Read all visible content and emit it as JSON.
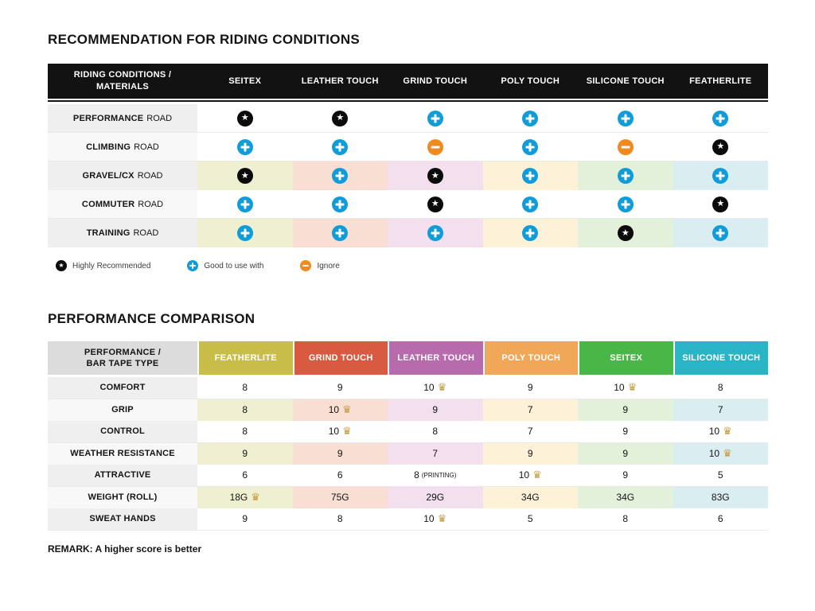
{
  "colors": {
    "featherlite": "#c9bd4a",
    "grind": "#d85b41",
    "leather": "#b76bad",
    "poly": "#f1a758",
    "seitex": "#4ab648",
    "silicone": "#2ab5c6",
    "featherlite_pale": "#eff0d2",
    "grind_pale": "#f9ded4",
    "leather_pale": "#f3dfee",
    "poly_pale": "#fdf1d7",
    "seitex_pale": "#e4f1da",
    "silicone_pale": "#daeef2",
    "star": "#0b0b0b",
    "plus": "#0f9cd8",
    "minus": "#f08a1e",
    "crown": "#c49a3c"
  },
  "chart_data": [
    {
      "type": "table",
      "title": "RECOMMENDATION FOR RIDING CONDITIONS",
      "corner": {
        "line1": "RIDING CONDITIONS /",
        "line2": "MATERIALS"
      },
      "columns": [
        "SEITEX",
        "LEATHER TOUCH",
        "GRIND TOUCH",
        "POLY TOUCH",
        "SILICONE TOUCH",
        "FEATHERLITE"
      ],
      "rows": [
        {
          "name": "PERFORMANCE",
          "suffix": "ROAD",
          "marks": [
            "star",
            "star",
            "plus",
            "plus",
            "plus",
            "plus"
          ]
        },
        {
          "name": "CLIMBING",
          "suffix": "ROAD",
          "marks": [
            "plus",
            "plus",
            "minus",
            "plus",
            "minus",
            "star"
          ]
        },
        {
          "name": "GRAVEL/CX",
          "suffix": "ROAD",
          "marks": [
            "star",
            "plus",
            "star",
            "plus",
            "plus",
            "plus"
          ]
        },
        {
          "name": "COMMUTER",
          "suffix": "ROAD",
          "marks": [
            "plus",
            "plus",
            "star",
            "plus",
            "plus",
            "star"
          ]
        },
        {
          "name": "TRAINING",
          "suffix": "ROAD",
          "marks": [
            "plus",
            "plus",
            "plus",
            "plus",
            "star",
            "plus"
          ]
        }
      ],
      "legend": [
        {
          "icon": "star",
          "label": "Highly Recommended"
        },
        {
          "icon": "plus",
          "label": "Good to use with"
        },
        {
          "icon": "minus",
          "label": "Ignore"
        }
      ]
    },
    {
      "type": "table",
      "title": "PERFORMANCE COMPARISON",
      "corner": {
        "line1": "PERFORMANCE /",
        "line2": "BAR TAPE TYPE"
      },
      "columns": [
        "FEATHERLITE",
        "GRIND TOUCH",
        "LEATHER TOUCH",
        "POLY TOUCH",
        "SEITEX",
        "SILICONE TOUCH"
      ],
      "rows": [
        {
          "label": "COMFORT",
          "cells": [
            {
              "text": "8"
            },
            {
              "text": "9"
            },
            {
              "text": "10",
              "crown": true
            },
            {
              "text": "9"
            },
            {
              "text": "10",
              "crown": true
            },
            {
              "text": "8"
            }
          ]
        },
        {
          "label": "GRIP",
          "cells": [
            {
              "text": "8"
            },
            {
              "text": "10",
              "crown": true
            },
            {
              "text": "9"
            },
            {
              "text": "7"
            },
            {
              "text": "9"
            },
            {
              "text": "7"
            }
          ]
        },
        {
          "label": "CONTROL",
          "cells": [
            {
              "text": "8"
            },
            {
              "text": "10",
              "crown": true
            },
            {
              "text": "8"
            },
            {
              "text": "7"
            },
            {
              "text": "9"
            },
            {
              "text": "10",
              "crown": true
            }
          ]
        },
        {
          "label": "WEATHER RESISTANCE",
          "cells": [
            {
              "text": "9"
            },
            {
              "text": "9"
            },
            {
              "text": "7"
            },
            {
              "text": "9"
            },
            {
              "text": "9"
            },
            {
              "text": "10",
              "crown": true
            }
          ]
        },
        {
          "label": "ATTRACTIVE",
          "cells": [
            {
              "text": "6"
            },
            {
              "text": "6"
            },
            {
              "text": "8",
              "note": "(PRINTING)"
            },
            {
              "text": "10",
              "crown": true
            },
            {
              "text": "9"
            },
            {
              "text": "5"
            }
          ]
        },
        {
          "label": "WEIGHT (ROLL)",
          "cells": [
            {
              "text": "18G",
              "crown": true
            },
            {
              "text": "75G"
            },
            {
              "text": "29G"
            },
            {
              "text": "34G"
            },
            {
              "text": "34G"
            },
            {
              "text": "83G"
            }
          ]
        },
        {
          "label": "SWEAT HANDS",
          "cells": [
            {
              "text": "9"
            },
            {
              "text": "8"
            },
            {
              "text": "10",
              "crown": true
            },
            {
              "text": "5"
            },
            {
              "text": "8"
            },
            {
              "text": "6"
            }
          ]
        }
      ],
      "remark": "REMARK: A higher score is better"
    }
  ]
}
